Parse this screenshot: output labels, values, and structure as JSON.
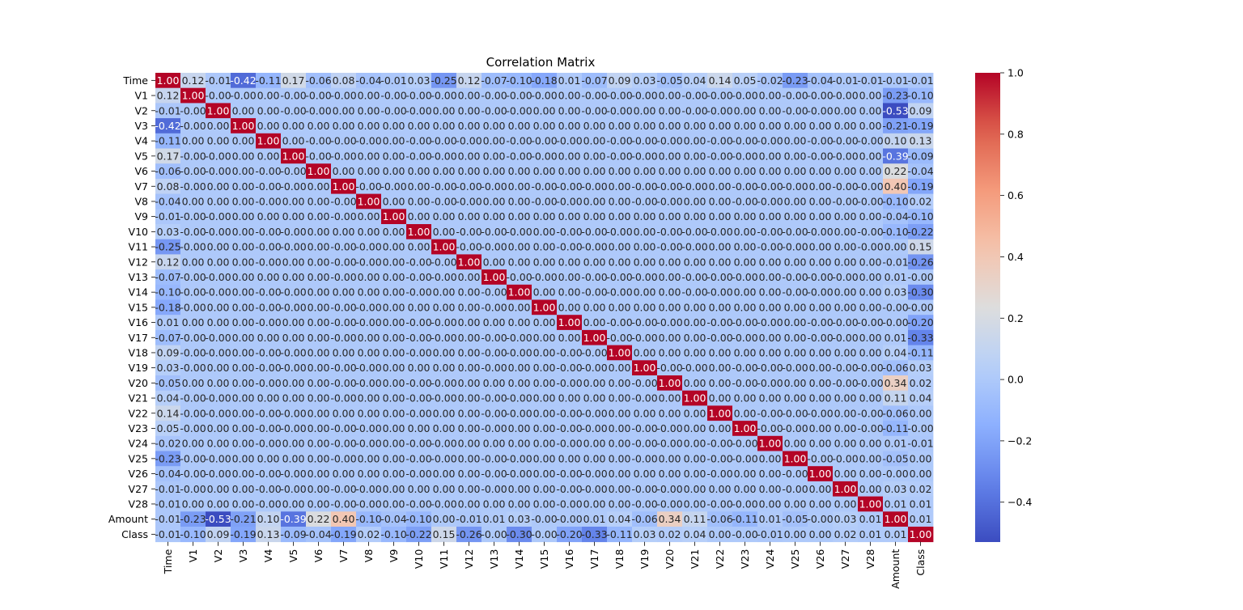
{
  "chart_data": {
    "type": "heatmap",
    "title": "Correlation Matrix",
    "labels": [
      "Time",
      "V1",
      "V2",
      "V3",
      "V4",
      "V5",
      "V6",
      "V7",
      "V8",
      "V9",
      "V10",
      "V11",
      "V12",
      "V13",
      "V14",
      "V15",
      "V16",
      "V17",
      "V18",
      "V19",
      "V20",
      "V21",
      "V22",
      "V23",
      "V24",
      "V25",
      "V26",
      "V27",
      "V28",
      "Amount",
      "Class"
    ],
    "first_row": [
      "1.00",
      "0.12",
      "-0.01",
      "-0.42",
      "-0.11",
      "0.17",
      "-0.06",
      "0.08",
      "-0.04",
      "-0.01",
      "0.03",
      "-0.25",
      "0.12",
      "-0.07",
      "-0.10",
      "-0.18",
      "0.01",
      "-0.07",
      "0.09",
      "0.03",
      "-0.05",
      "0.04",
      "0.14",
      "0.05",
      "-0.02",
      "-0.23",
      "-0.04",
      "-0.01",
      "-0.01",
      "-0.01",
      "-0.01"
    ],
    "amount_row": [
      "-0.01",
      "-0.23",
      "-0.53",
      "-0.21",
      "0.10",
      "-0.39",
      "0.22",
      "0.40",
      "-0.10",
      "-0.04",
      "-0.10",
      "0.00",
      "-0.01",
      "0.01",
      "0.03",
      "-0.00",
      "-0.00",
      "0.01",
      "0.04",
      "-0.06",
      "0.34",
      "0.11",
      "-0.06",
      "-0.11",
      "0.01",
      "-0.05",
      "-0.00",
      "0.03",
      "0.01",
      "1.00",
      "0.01"
    ],
    "class_row": [
      "-0.01",
      "-0.10",
      "0.09",
      "-0.19",
      "0.13",
      "-0.09",
      "-0.04",
      "-0.19",
      "0.02",
      "-0.10",
      "-0.22",
      "0.15",
      "-0.26",
      "-0.00",
      "-0.30",
      "-0.00",
      "-0.20",
      "-0.33",
      "-0.11",
      "0.03",
      "0.02",
      "0.04",
      "0.00",
      "-0.00",
      "-0.01",
      "0.00",
      "0.00",
      "0.02",
      "0.01",
      "0.01",
      "1.00"
    ],
    "fill_pattern": [
      "0.00",
      "-0.00",
      "0.00",
      "0.00",
      "-0.00",
      "-0.00",
      "0.00",
      "0.00",
      "-0.00",
      "0.00",
      "-0.00",
      "0.00"
    ],
    "colormap": "coolwarm",
    "vmin": -0.53,
    "vmax": 1.0,
    "colorbar_ticks": [
      "1.0",
      "0.8",
      "0.6",
      "0.4",
      "0.2",
      "0.0",
      "−0.2",
      "−0.4"
    ],
    "colorbar_tick_values": [
      1.0,
      0.8,
      0.6,
      0.4,
      0.2,
      0.0,
      -0.2,
      -0.4
    ]
  }
}
